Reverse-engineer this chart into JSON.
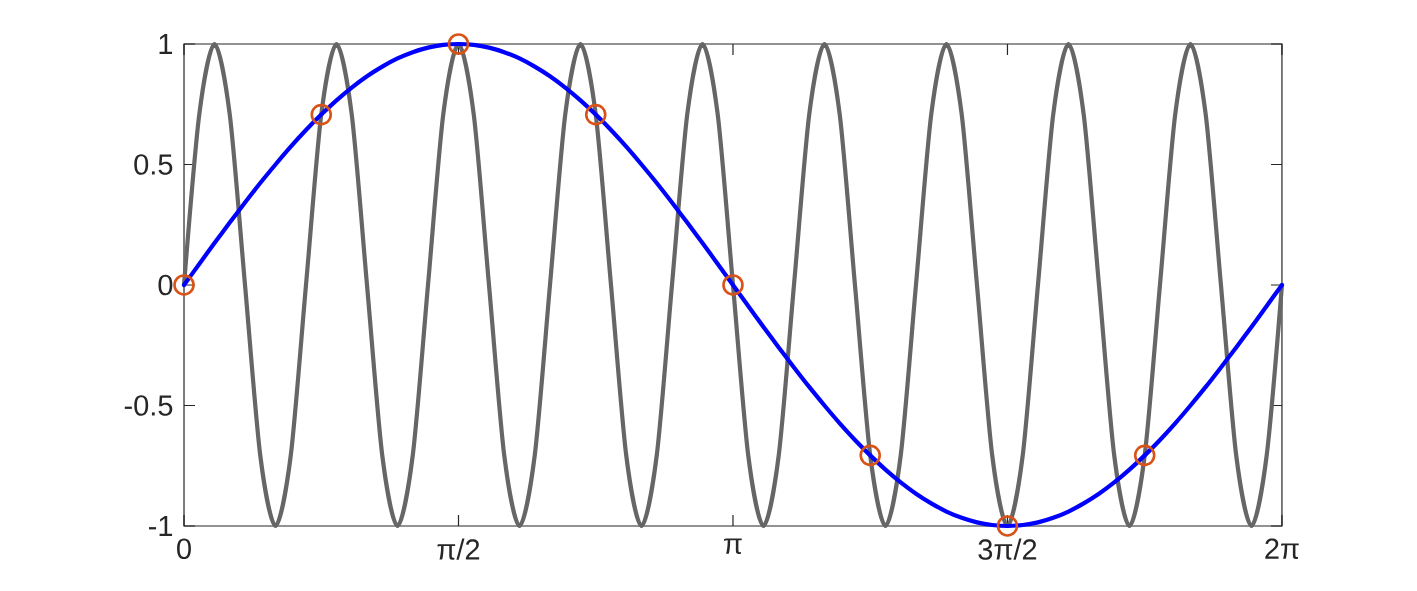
{
  "chart_data": {
    "type": "line",
    "x": [
      0,
      0.0873,
      0.1745,
      0.2618,
      0.3491,
      0.4363,
      0.5236,
      0.6109,
      0.6981,
      0.7854,
      0.8727,
      0.9599,
      1.0472,
      1.1345,
      1.2217,
      1.309,
      1.3963,
      1.4835,
      1.5708,
      1.6581,
      1.7453,
      1.8326,
      1.9199,
      2.0071,
      2.0944,
      2.1817,
      2.2689,
      2.3562,
      2.4435,
      2.5307,
      2.618,
      2.7053,
      2.7925,
      2.8798,
      2.9671,
      3.0543,
      3.1416,
      3.2289,
      3.3161,
      3.4034,
      3.4907,
      3.5779,
      3.6652,
      3.7525,
      3.8397,
      3.927,
      4.0143,
      4.1015,
      4.1888,
      4.2761,
      4.3633,
      4.4506,
      4.5379,
      4.6251,
      4.7124,
      4.7997,
      4.8869,
      4.9742,
      5.0615,
      5.1487,
      5.236,
      5.3233,
      5.4105,
      5.4978,
      5.5851,
      5.6723,
      5.7596,
      5.8469,
      5.9341,
      6.0214,
      6.1087,
      6.1959,
      6.2832
    ],
    "xlim": [
      0,
      6.2832
    ],
    "xticks": [
      0,
      {
        "value": 1.5708,
        "label": "π/2"
      },
      {
        "value": 3.1416,
        "label": "π"
      },
      {
        "value": 4.7124,
        "label": "3π/2"
      },
      {
        "value": 6.2832,
        "label": "2π"
      }
    ],
    "ylim": [
      -1,
      1
    ],
    "yticks": [
      -1,
      -0.5,
      0,
      0.5,
      1
    ],
    "series": [
      {
        "color": "#666666",
        "values": [
          0,
          0.707,
          1,
          0.707,
          0,
          -0.707,
          -1,
          -0.707,
          0,
          0.707,
          1,
          0.707,
          0,
          -0.707,
          -1,
          -0.707,
          0,
          0.707,
          1,
          0.707,
          0,
          -0.707,
          -1,
          -0.707,
          0,
          0.707,
          1,
          0.707,
          0,
          -0.707,
          -1,
          -0.707,
          0,
          0.707,
          1,
          0.707,
          0,
          -0.707,
          -1,
          -0.707,
          0,
          0.707,
          1,
          0.707,
          0,
          -0.707,
          -1,
          -0.707,
          0,
          0.707,
          1,
          0.707,
          0,
          -0.707,
          -1,
          -0.707,
          0,
          0.707,
          1,
          0.707,
          0,
          -0.707,
          -1,
          -0.707,
          0,
          0.707,
          1,
          0.707,
          0,
          -0.707,
          -1,
          -0.707,
          0
        ]
      },
      {
        "color": "#0000ff",
        "values": [
          0,
          0.087,
          0.174,
          0.259,
          0.342,
          0.423,
          0.5,
          0.574,
          0.643,
          0.707,
          0.766,
          0.819,
          0.866,
          0.906,
          0.94,
          0.966,
          0.985,
          0.996,
          1,
          0.996,
          0.985,
          0.966,
          0.94,
          0.906,
          0.866,
          0.819,
          0.766,
          0.707,
          0.643,
          0.574,
          0.5,
          0.423,
          0.342,
          0.259,
          0.174,
          0.087,
          0,
          -0.087,
          -0.174,
          -0.259,
          -0.342,
          -0.423,
          -0.5,
          -0.574,
          -0.643,
          -0.707,
          -0.766,
          -0.819,
          -0.866,
          -0.906,
          -0.94,
          -0.966,
          -0.985,
          -0.996,
          -1,
          -0.996,
          -0.985,
          -0.966,
          -0.94,
          -0.906,
          -0.866,
          -0.819,
          -0.766,
          -0.707,
          -0.643,
          -0.574,
          -0.5,
          -0.423,
          -0.342,
          -0.259,
          -0.174,
          -0.087,
          0
        ]
      },
      {
        "type": "scatter",
        "marker": "circle",
        "color": "#d95319",
        "x": [
          0,
          0.7854,
          1.5708,
          2.3562,
          3.1416,
          3.927,
          4.7124,
          5.4978
        ],
        "values": [
          0,
          0.707,
          1,
          0.707,
          0,
          -0.707,
          -1,
          -0.707
        ]
      }
    ]
  }
}
